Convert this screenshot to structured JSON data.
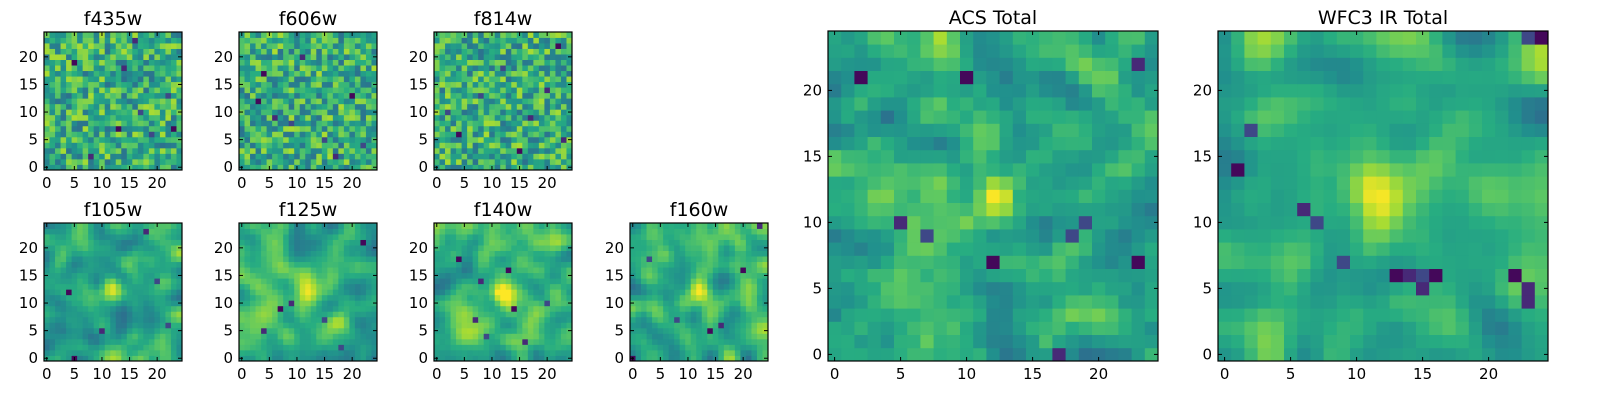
{
  "chart_data": [
    {
      "id": "f435w",
      "type": "heatmap",
      "title": "f435w",
      "seed": 11,
      "style": "noisy",
      "grid_size": [
        25,
        25
      ],
      "xlim": [
        0,
        24
      ],
      "ylim": [
        0,
        24
      ],
      "xticks": [
        0,
        5,
        10,
        15,
        20
      ],
      "yticks": [
        0,
        5,
        10,
        15,
        20
      ],
      "colormap": "viridis",
      "value_range": [
        0,
        1
      ],
      "dark_pixels": [
        [
          5,
          19
        ],
        [
          16,
          23
        ],
        [
          17,
          10
        ],
        [
          23,
          7
        ],
        [
          14,
          18
        ],
        [
          19,
          6
        ],
        [
          13,
          7
        ],
        [
          8,
          2
        ],
        [
          22,
          13
        ]
      ]
    },
    {
      "id": "f606w",
      "type": "heatmap",
      "title": "f606w",
      "seed": 23,
      "style": "noisy",
      "grid_size": [
        25,
        25
      ],
      "xlim": [
        0,
        24
      ],
      "ylim": [
        0,
        24
      ],
      "xticks": [
        0,
        5,
        10,
        15,
        20
      ],
      "yticks": [
        0,
        5,
        10,
        15,
        20
      ],
      "colormap": "viridis",
      "value_range": [
        0,
        1
      ],
      "dark_pixels": [
        [
          3,
          12
        ],
        [
          6,
          9
        ],
        [
          15,
          5
        ],
        [
          20,
          13
        ],
        [
          11,
          20
        ],
        [
          22,
          4
        ],
        [
          4,
          17
        ],
        [
          17,
          2
        ],
        [
          9,
          8
        ]
      ]
    },
    {
      "id": "f814w",
      "type": "heatmap",
      "title": "f814w",
      "seed": 37,
      "style": "noisy",
      "grid_size": [
        25,
        25
      ],
      "xlim": [
        0,
        24
      ],
      "ylim": [
        0,
        24
      ],
      "xticks": [
        0,
        5,
        10,
        15,
        20
      ],
      "yticks": [
        0,
        5,
        10,
        15,
        20
      ],
      "colormap": "viridis",
      "value_range": [
        0,
        1
      ],
      "dark_pixels": [
        [
          22,
          22
        ],
        [
          17,
          9
        ],
        [
          12,
          18
        ],
        [
          4,
          6
        ],
        [
          20,
          14
        ],
        [
          8,
          13
        ],
        [
          15,
          3
        ],
        [
          23,
          5
        ],
        [
          2,
          10
        ]
      ]
    },
    {
      "id": "f105w",
      "type": "heatmap",
      "title": "f105w",
      "seed": 41,
      "style": "smooth",
      "grid_size": [
        25,
        25
      ],
      "xlim": [
        0,
        24
      ],
      "ylim": [
        0,
        24
      ],
      "xticks": [
        0,
        5,
        10,
        15,
        20
      ],
      "yticks": [
        0,
        5,
        10,
        15,
        20
      ],
      "colormap": "viridis",
      "value_range": [
        0,
        1
      ],
      "source": [
        12,
        13
      ],
      "dark_pixels": [
        [
          5,
          0
        ],
        [
          18,
          23
        ],
        [
          22,
          6
        ],
        [
          4,
          12
        ],
        [
          10,
          5
        ],
        [
          20,
          14
        ]
      ]
    },
    {
      "id": "f125w",
      "type": "heatmap",
      "title": "f125w",
      "seed": 53,
      "style": "smooth",
      "grid_size": [
        25,
        25
      ],
      "xlim": [
        0,
        24
      ],
      "ylim": [
        0,
        24
      ],
      "xticks": [
        0,
        5,
        10,
        15,
        20
      ],
      "yticks": [
        0,
        5,
        10,
        15,
        20
      ],
      "colormap": "viridis",
      "value_range": [
        0,
        1
      ],
      "source": [
        12,
        12
      ],
      "dark_pixels": [
        [
          7,
          9
        ],
        [
          9,
          10
        ],
        [
          15,
          7
        ],
        [
          22,
          21
        ],
        [
          4,
          5
        ],
        [
          18,
          2
        ]
      ]
    },
    {
      "id": "f140w",
      "type": "heatmap",
      "title": "f140w",
      "seed": 67,
      "style": "smooth",
      "grid_size": [
        25,
        25
      ],
      "xlim": [
        0,
        24
      ],
      "ylim": [
        0,
        24
      ],
      "xticks": [
        0,
        5,
        10,
        15,
        20
      ],
      "yticks": [
        0,
        5,
        10,
        15,
        20
      ],
      "colormap": "viridis",
      "value_range": [
        0,
        1
      ],
      "source": [
        12,
        12
      ],
      "dark_pixels": [
        [
          4,
          18
        ],
        [
          7,
          7
        ],
        [
          9,
          4
        ],
        [
          13,
          16
        ],
        [
          16,
          3
        ],
        [
          20,
          10
        ],
        [
          14,
          9
        ],
        [
          8,
          14
        ]
      ]
    },
    {
      "id": "f160w",
      "type": "heatmap",
      "title": "f160w",
      "seed": 79,
      "style": "smooth",
      "grid_size": [
        25,
        25
      ],
      "xlim": [
        0,
        24
      ],
      "ylim": [
        0,
        24
      ],
      "xticks": [
        0,
        5,
        10,
        15,
        20
      ],
      "yticks": [
        0,
        5,
        10,
        15,
        20
      ],
      "colormap": "viridis",
      "value_range": [
        0,
        1
      ],
      "source": [
        12,
        12
      ],
      "dark_pixels": [
        [
          0,
          0
        ],
        [
          23,
          24
        ],
        [
          8,
          7
        ],
        [
          14,
          5
        ],
        [
          16,
          6
        ],
        [
          3,
          18
        ],
        [
          20,
          16
        ]
      ]
    },
    {
      "id": "acs-total",
      "type": "heatmap",
      "title": "ACS Total",
      "seed": 101,
      "style": "medium",
      "grid_size": [
        25,
        25
      ],
      "xlim": [
        0,
        24
      ],
      "ylim": [
        0,
        24
      ],
      "xticks": [
        0,
        5,
        10,
        15,
        20
      ],
      "yticks": [
        0,
        5,
        10,
        15,
        20
      ],
      "colormap": "viridis",
      "value_range": [
        0,
        1
      ],
      "source": [
        12,
        12
      ],
      "dark_pixels": [
        [
          2,
          21
        ],
        [
          5,
          10
        ],
        [
          7,
          9
        ],
        [
          10,
          21
        ],
        [
          17,
          0
        ],
        [
          19,
          10
        ],
        [
          23,
          7
        ],
        [
          23,
          22
        ],
        [
          18,
          9
        ],
        [
          12,
          7
        ]
      ]
    },
    {
      "id": "wfc3-ir-total",
      "type": "heatmap",
      "title": "WFC3 IR Total",
      "seed": 113,
      "style": "smooth",
      "grid_size": [
        25,
        25
      ],
      "xlim": [
        0,
        24
      ],
      "ylim": [
        0,
        24
      ],
      "xticks": [
        0,
        5,
        10,
        15,
        20
      ],
      "yticks": [
        0,
        5,
        10,
        15,
        20
      ],
      "colormap": "viridis",
      "value_range": [
        0,
        1
      ],
      "source": [
        12,
        12
      ],
      "dark_pixels": [
        [
          1,
          14
        ],
        [
          6,
          11
        ],
        [
          7,
          10
        ],
        [
          13,
          6
        ],
        [
          14,
          6
        ],
        [
          15,
          6
        ],
        [
          16,
          6
        ],
        [
          15,
          5
        ],
        [
          9,
          7
        ],
        [
          22,
          6
        ],
        [
          23,
          5
        ],
        [
          23,
          24
        ],
        [
          24,
          24
        ],
        [
          23,
          4
        ],
        [
          2,
          17
        ]
      ]
    }
  ]
}
